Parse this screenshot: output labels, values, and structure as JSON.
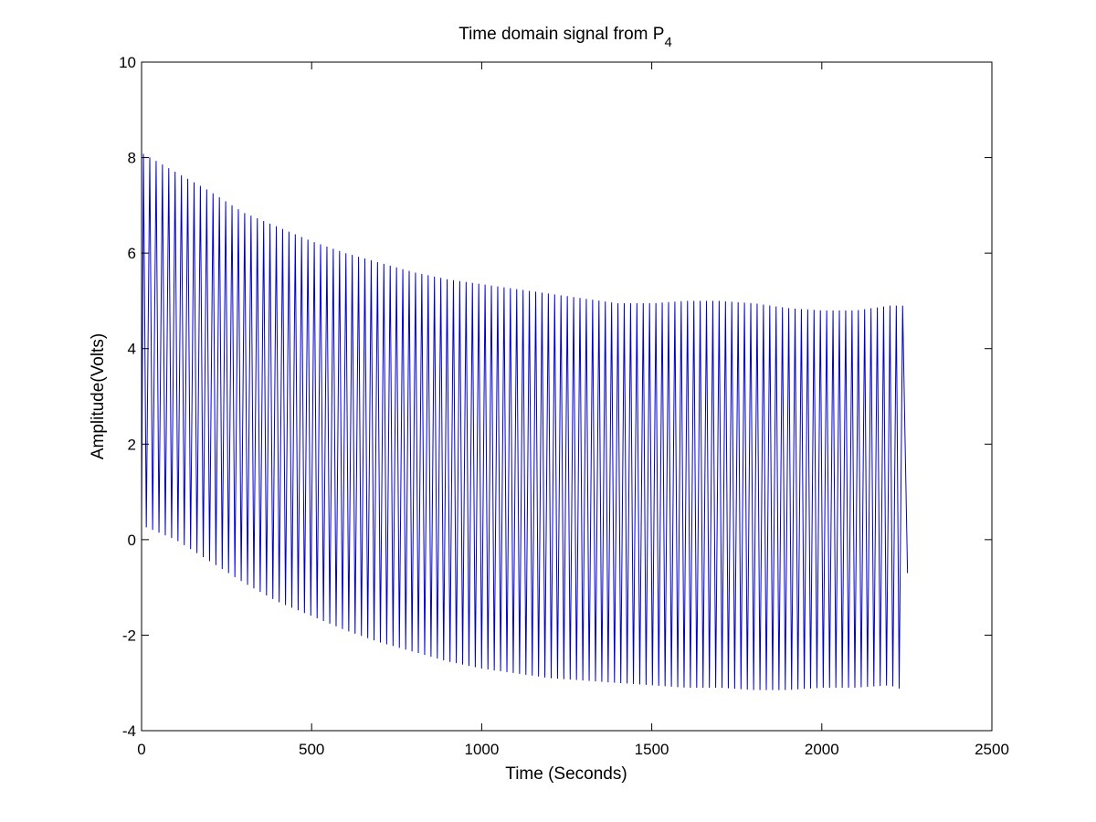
{
  "chart_data": {
    "type": "line",
    "title": "Time domain signal from P",
    "title_subscript": "4",
    "xlabel": "Time (Seconds)",
    "ylabel": "Amplitude(Volts)",
    "xlim": [
      0,
      2500
    ],
    "ylim": [
      -4,
      10
    ],
    "x_ticks": [
      0,
      500,
      1000,
      1500,
      2000,
      2500
    ],
    "y_ticks": [
      -4,
      -2,
      0,
      2,
      4,
      6,
      8,
      10
    ],
    "x_tick_labels": [
      "0",
      "500",
      "1000",
      "1500",
      "2000",
      "2500"
    ],
    "y_tick_labels": [
      "-4",
      "-2",
      "0",
      "2",
      "4",
      "6",
      "8",
      "10"
    ],
    "grid": false,
    "legend": "none",
    "series": [
      {
        "color": "#0000cc",
        "style": "oscillating",
        "period_seconds": 18.6,
        "x_start": 0,
        "x_end": 2252,
        "start_value": 0.4,
        "end_value": -0.7,
        "envelope": [
          {
            "x": 0,
            "upper": 8.1,
            "lower": 0.3
          },
          {
            "x": 100,
            "upper": 7.7,
            "lower": 0.0
          },
          {
            "x": 200,
            "upper": 7.3,
            "lower": -0.45
          },
          {
            "x": 300,
            "upper": 6.85,
            "lower": -0.9
          },
          {
            "x": 400,
            "upper": 6.55,
            "lower": -1.3
          },
          {
            "x": 500,
            "upper": 6.25,
            "lower": -1.6
          },
          {
            "x": 600,
            "upper": 6.0,
            "lower": -1.9
          },
          {
            "x": 700,
            "upper": 5.8,
            "lower": -2.15
          },
          {
            "x": 800,
            "upper": 5.6,
            "lower": -2.35
          },
          {
            "x": 900,
            "upper": 5.45,
            "lower": -2.55
          },
          {
            "x": 1000,
            "upper": 5.35,
            "lower": -2.7
          },
          {
            "x": 1100,
            "upper": 5.25,
            "lower": -2.8
          },
          {
            "x": 1200,
            "upper": 5.15,
            "lower": -2.9
          },
          {
            "x": 1300,
            "upper": 5.05,
            "lower": -2.95
          },
          {
            "x": 1400,
            "upper": 4.95,
            "lower": -3.0
          },
          {
            "x": 1500,
            "upper": 4.95,
            "lower": -3.05
          },
          {
            "x": 1600,
            "upper": 5.0,
            "lower": -3.1
          },
          {
            "x": 1700,
            "upper": 5.0,
            "lower": -3.1
          },
          {
            "x": 1800,
            "upper": 4.95,
            "lower": -3.15
          },
          {
            "x": 1900,
            "upper": 4.85,
            "lower": -3.15
          },
          {
            "x": 2000,
            "upper": 4.8,
            "lower": -3.1
          },
          {
            "x": 2100,
            "upper": 4.8,
            "lower": -3.1
          },
          {
            "x": 2200,
            "upper": 4.9,
            "lower": -3.05
          },
          {
            "x": 2240,
            "upper": 4.9,
            "lower": -3.15
          }
        ]
      }
    ]
  }
}
